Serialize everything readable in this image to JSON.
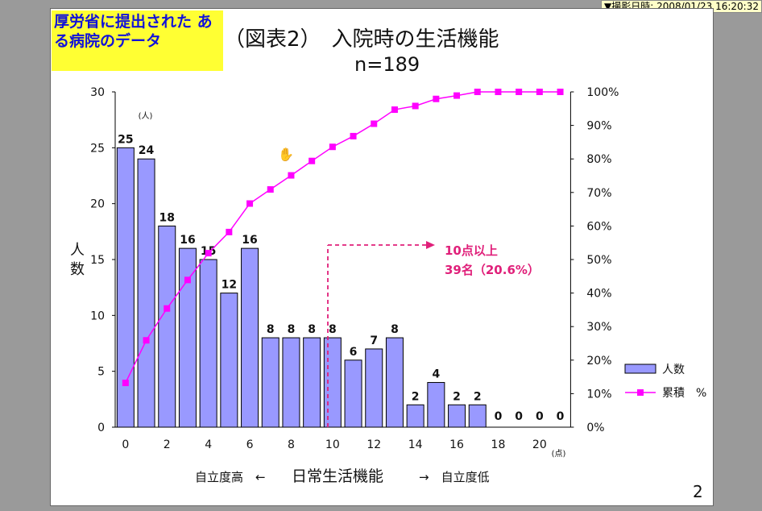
{
  "timestamp": "▼撮影日時: 2008/01/23 16:20:32",
  "note_text": "厚労省に提出された ある病院のデータ",
  "slide_number": "2",
  "chart_data": {
    "type": "bar",
    "title": "（図表2）　入院時の生活機能",
    "subtitle": "n=189",
    "categories": [
      "0",
      "1",
      "2",
      "3",
      "4",
      "5",
      "6",
      "7",
      "8",
      "9",
      "10",
      "11",
      "12",
      "13",
      "14",
      "15",
      "16",
      "17",
      "18",
      "19",
      "20",
      "21"
    ],
    "x_tick_labels": [
      "0",
      "2",
      "4",
      "6",
      "8",
      "10",
      "12",
      "14",
      "16",
      "18",
      "20"
    ],
    "x_unit": "(点)",
    "y_unit": "(人)",
    "ylabel": "人数",
    "xlabel_left": "自立度高　←",
    "xlabel_center": "日常生活機能",
    "xlabel_right": "→　自立度低",
    "ylim": [
      0,
      30
    ],
    "y_ticks": [
      0,
      5,
      10,
      15,
      20,
      25,
      30
    ],
    "y2lim": [
      0,
      100
    ],
    "y2_ticks": [
      "0%",
      "10%",
      "20%",
      "30%",
      "40%",
      "50%",
      "60%",
      "70%",
      "80%",
      "90%",
      "100%"
    ],
    "series": [
      {
        "name": "人数",
        "type": "bar",
        "color": "#9999ff",
        "values": [
          25,
          24,
          18,
          16,
          15,
          12,
          16,
          8,
          8,
          8,
          8,
          6,
          7,
          8,
          2,
          4,
          2,
          2,
          0,
          0,
          0,
          0
        ]
      },
      {
        "name": "累積　%",
        "type": "line",
        "color": "#ff00ff",
        "values": [
          13.2,
          25.9,
          35.4,
          43.9,
          51.9,
          58.2,
          66.7,
          70.9,
          75.1,
          79.4,
          83.6,
          86.8,
          90.5,
          94.7,
          95.8,
          97.9,
          98.9,
          100,
          100,
          100,
          100,
          100
        ]
      }
    ],
    "annotation": {
      "line1": "10点以上",
      "line2": "39名（20.6%）",
      "color": "#e0207a",
      "threshold": 10
    }
  }
}
